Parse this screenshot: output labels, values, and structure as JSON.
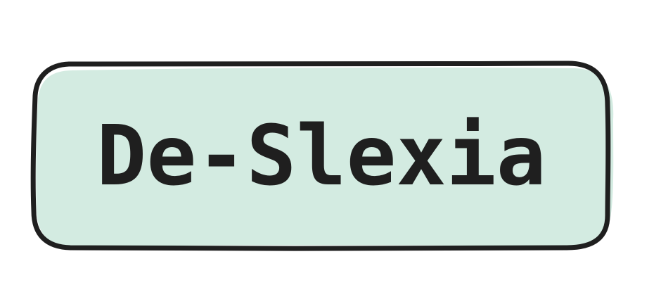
{
  "logo": {
    "text": "De-Slexia",
    "fill_color": "#d3ebe1",
    "stroke_color": "#1f1f1f",
    "text_color": "#1f1f1f"
  }
}
